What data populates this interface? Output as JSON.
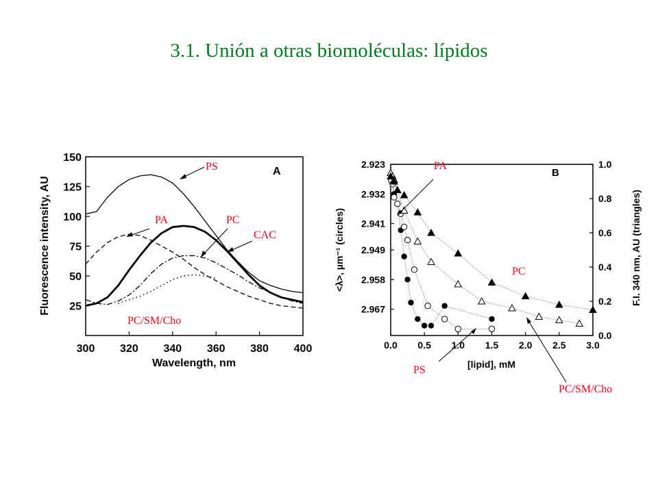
{
  "slide": {
    "title": "3.1. Unión a otras biomoléculas: lípidos"
  },
  "colors": {
    "title": "#007a1f",
    "annotation": "#e8001c",
    "axis": "#000000",
    "fit": "#888888"
  },
  "chart_data": [
    {
      "type": "line",
      "panel_label": "A",
      "xlabel": "Wavelength, nm",
      "ylabel": "Fluorescence intensity, AU",
      "xlim": [
        300,
        400
      ],
      "ylim": [
        0,
        150
      ],
      "x_ticks": [
        300,
        320,
        340,
        360,
        380,
        400
      ],
      "y_ticks": [
        25,
        50,
        75,
        100,
        125,
        150
      ],
      "series": [
        {
          "name": "PS",
          "style": "solid-thin",
          "x": [
            300,
            305,
            310,
            315,
            320,
            325,
            330,
            335,
            340,
            345,
            350,
            355,
            360,
            365,
            370,
            375,
            380,
            385,
            390,
            395,
            400
          ],
          "y": [
            102,
            104,
            116,
            125,
            131,
            134,
            135,
            133,
            128,
            119,
            108,
            96,
            84,
            72,
            62,
            53,
            46,
            42,
            39,
            37,
            36
          ]
        },
        {
          "name": "PA",
          "style": "dashed",
          "x": [
            300,
            305,
            310,
            315,
            320,
            325,
            330,
            335,
            340,
            345,
            350,
            355,
            360,
            365,
            370,
            375,
            380,
            385,
            390,
            395,
            400
          ],
          "y": [
            60,
            70,
            78,
            83,
            85,
            84,
            80,
            75,
            70,
            64,
            57,
            51,
            46,
            41,
            37,
            33,
            30,
            27,
            25,
            24,
            23
          ]
        },
        {
          "name": "PC",
          "style": "solid-thick",
          "x": [
            300,
            305,
            310,
            315,
            320,
            325,
            330,
            335,
            340,
            345,
            350,
            355,
            360,
            365,
            370,
            375,
            380,
            385,
            390,
            395,
            400
          ],
          "y": [
            25,
            27,
            32,
            42,
            55,
            67,
            78,
            86,
            91,
            92,
            91,
            87,
            80,
            71,
            61,
            51,
            42,
            36,
            32,
            30,
            28
          ]
        },
        {
          "name": "CAC",
          "style": "dash-dot",
          "x": [
            300,
            305,
            310,
            315,
            320,
            325,
            330,
            335,
            340,
            345,
            350,
            355,
            360,
            365,
            370,
            375,
            380,
            385,
            390,
            395,
            400
          ],
          "y": [
            30,
            27,
            26,
            29,
            34,
            42,
            52,
            60,
            65,
            67,
            67,
            65,
            61,
            56,
            51,
            45,
            40,
            36,
            32,
            29,
            27
          ]
        },
        {
          "name": "PC/SM/Cho",
          "style": "dotted",
          "x": [
            315,
            320,
            325,
            330,
            335,
            340,
            345,
            350,
            355,
            360
          ],
          "y": [
            27,
            30,
            33,
            37,
            42,
            47,
            50,
            51,
            50,
            48
          ]
        }
      ],
      "annotations": [
        "PS",
        "PA",
        "PC",
        "CAC",
        "PC/SM/Cho"
      ]
    },
    {
      "type": "scatter",
      "panel_label": "B",
      "xlabel": "[lipid], mM",
      "ylabel_left": "<λ>, µm⁻¹ (circles)",
      "ylabel_right": "F.I. 340 nm, AU (triangles)",
      "xlim": [
        0,
        3.0
      ],
      "ylim_left": [
        2.923,
        2.975
      ],
      "ylim_right": [
        0,
        1.0
      ],
      "x_ticks": [
        "0.0",
        "0.5",
        "1.0",
        "1.5",
        "2.0",
        "2.5",
        "3.0"
      ],
      "y_ticks_left": [
        "2.923",
        "2.932",
        "2.941",
        "2.949",
        "2.958",
        "2.967"
      ],
      "y_ticks_right": [
        "0.0",
        "0.2",
        "0.4",
        "0.6",
        "0.8",
        "1.0"
      ],
      "series": [
        {
          "name": "PS",
          "marker": "filled-circle",
          "axis": "left",
          "x": [
            0.01,
            0.03,
            0.05,
            0.1,
            0.15,
            0.2,
            0.25,
            0.3,
            0.4,
            0.5,
            0.6,
            0.8,
            1.5
          ],
          "y": [
            2.927,
            2.929,
            2.932,
            2.935,
            2.943,
            2.951,
            2.958,
            2.965,
            2.97,
            2.972,
            2.972,
            2.966,
            2.97
          ]
        },
        {
          "name": "PA",
          "marker": "open-circle",
          "axis": "left",
          "x": [
            0.01,
            0.03,
            0.05,
            0.1,
            0.15,
            0.2,
            0.25,
            0.35,
            0.55,
            0.8,
            1.0,
            1.5
          ],
          "y": [
            2.928,
            2.929,
            2.933,
            2.935,
            2.938,
            2.942,
            2.946,
            2.955,
            2.966,
            2.97,
            2.973,
            2.973
          ]
        },
        {
          "name": "PC/SM/Cho",
          "marker": "open-triangle",
          "axis": "right",
          "x": [
            0.0,
            0.03,
            0.05,
            0.1,
            0.2,
            0.4,
            0.6,
            1.0,
            1.35,
            1.8,
            2.2,
            2.5,
            2.8
          ],
          "y": [
            0.95,
            0.93,
            0.91,
            0.85,
            0.73,
            0.55,
            0.43,
            0.3,
            0.2,
            0.16,
            0.11,
            0.09,
            0.07
          ]
        },
        {
          "name": "PC",
          "marker": "filled-triangle",
          "axis": "right",
          "x": [
            0.0,
            0.05,
            0.1,
            0.2,
            0.4,
            0.6,
            1.0,
            1.5,
            2.0,
            2.5,
            3.0
          ],
          "y": [
            0.93,
            0.9,
            0.85,
            0.82,
            0.72,
            0.6,
            0.48,
            0.31,
            0.23,
            0.18,
            0.15
          ]
        }
      ],
      "annotations": [
        "PA",
        "PC",
        "PS",
        "PC/SM/Cho"
      ]
    }
  ]
}
